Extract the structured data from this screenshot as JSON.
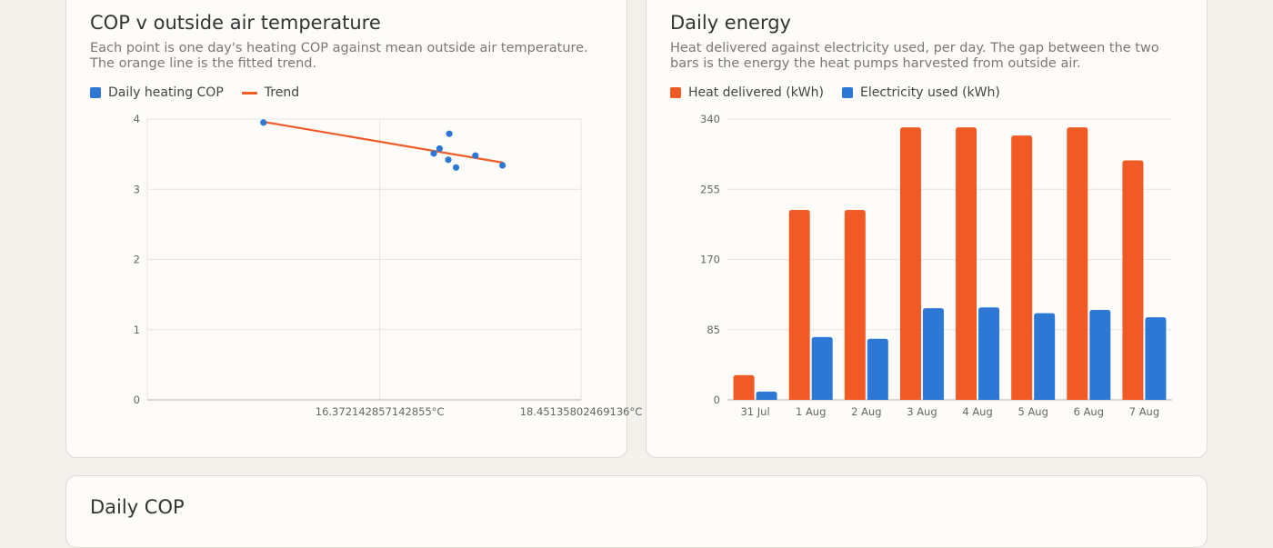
{
  "colors": {
    "orange": "#f05a24",
    "blue": "#2c78d4",
    "grid": "#e6e4de",
    "axis": "#cccac3"
  },
  "cards": {
    "scatter": {
      "title": "COP v outside air temperature",
      "description": "Each point is one day's heating COP against mean outside air temperature. The orange line is the fitted trend.",
      "legend": [
        {
          "label": "Daily heating COP",
          "swatch": "box",
          "color": "#2c78d4"
        },
        {
          "label": "Trend",
          "swatch": "line",
          "color": "#f05a24"
        }
      ]
    },
    "energy": {
      "title": "Daily energy",
      "description": "Heat delivered against electricity used, per day. The gap between the two bars is the energy the heat pumps harvested from outside air.",
      "legend": [
        {
          "label": "Heat delivered (kWh)",
          "swatch": "box",
          "color": "#f05a24"
        },
        {
          "label": "Electricity used (kWh)",
          "swatch": "box",
          "color": "#2c78d4"
        }
      ]
    },
    "cop": {
      "title": "Daily COP"
    }
  },
  "chart_data": [
    {
      "type": "scatter",
      "title": "COP v outside air temperature",
      "xlabel": "",
      "ylabel": "",
      "x_tick_labels": [
        "16.372142857142855°C",
        "18.45135802469136°C"
      ],
      "x_tick_values": [
        16.372142857142855,
        18.45135802469136
      ],
      "xlim": [
        13.97,
        18.45135802469136
      ],
      "ylim": [
        0,
        4
      ],
      "y_ticks": [
        0,
        1,
        2,
        3,
        4
      ],
      "grid": true,
      "legend_position": "top-left",
      "series": [
        {
          "name": "Daily heating COP",
          "points": [
            {
              "x": 15.17,
              "y": 3.95
            },
            {
              "x": 16.93,
              "y": 3.51
            },
            {
              "x": 16.99,
              "y": 3.58
            },
            {
              "x": 17.08,
              "y": 3.42
            },
            {
              "x": 17.09,
              "y": 3.79
            },
            {
              "x": 17.16,
              "y": 3.31
            },
            {
              "x": 17.36,
              "y": 3.48
            },
            {
              "x": 17.64,
              "y": 3.34
            }
          ]
        },
        {
          "name": "Trend",
          "line": [
            {
              "x": 15.17,
              "y": 3.96
            },
            {
              "x": 17.64,
              "y": 3.38
            }
          ]
        }
      ]
    },
    {
      "type": "bar",
      "title": "Daily energy",
      "categories": [
        "31 Jul",
        "1 Aug",
        "2 Aug",
        "3 Aug",
        "4 Aug",
        "5 Aug",
        "6 Aug",
        "7 Aug"
      ],
      "ylim": [
        0,
        340
      ],
      "y_ticks": [
        0,
        85,
        170,
        255,
        340
      ],
      "grid": true,
      "legend_position": "top-left",
      "series": [
        {
          "name": "Heat delivered (kWh)",
          "color": "#f05a24",
          "values": [
            30,
            230,
            230,
            330,
            330,
            320,
            330,
            290
          ]
        },
        {
          "name": "Electricity used (kWh)",
          "color": "#2c78d4",
          "values": [
            10,
            76,
            74,
            111,
            112,
            105,
            109,
            100
          ]
        }
      ]
    }
  ]
}
